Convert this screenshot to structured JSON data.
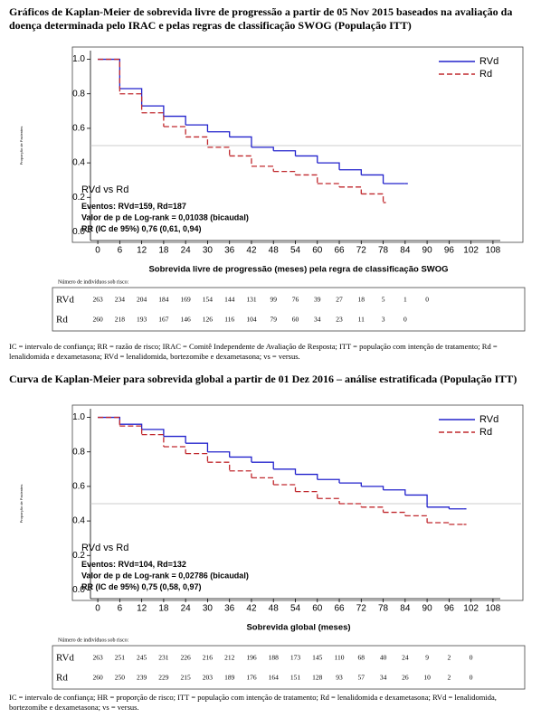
{
  "chart_data": [
    {
      "type": "step",
      "title": "Gráficos de Kaplan-Meier de sobrevida livre de progressão a partir de 05 Nov 2015 baseados na avaliação da doença determinada pelo IRAC e pelas regras de classificação SWOG (População ITT)",
      "x_label": "Sobrevida livre de progressão (meses) pela regra de classificação SWOG",
      "y_label": "Proporção de Pacientes",
      "annotations": [
        "RVd vs Rd",
        "Eventos: RVd=159, Rd=187",
        "Valor de p de Log-rank = 0,01038 (bicaudal)",
        "RR (IC de 95%) 0,76 (0,61, 0,94)"
      ],
      "x": [
        0,
        6,
        12,
        18,
        24,
        30,
        36,
        42,
        48,
        54,
        60,
        66,
        72,
        78,
        84
      ],
      "series": [
        {
          "name": "RVd",
          "color": "#2222cc",
          "dashed": false,
          "values": [
            1.0,
            0.83,
            0.73,
            0.67,
            0.62,
            0.58,
            0.55,
            0.49,
            0.47,
            0.44,
            0.4,
            0.36,
            0.33,
            0.28,
            0.28
          ]
        },
        {
          "name": "Rd",
          "color": "#c0282d",
          "dashed": true,
          "values": [
            1.0,
            0.8,
            0.69,
            0.61,
            0.55,
            0.49,
            0.44,
            0.38,
            0.35,
            0.33,
            0.28,
            0.26,
            0.22,
            0.17,
            null
          ]
        }
      ],
      "xlim": [
        -2,
        110
      ],
      "xticks": [
        0,
        6,
        12,
        18,
        24,
        30,
        36,
        42,
        48,
        54,
        60,
        66,
        72,
        78,
        84,
        90,
        96,
        102,
        108
      ],
      "ylim": [
        -0.05,
        1.05
      ],
      "yticks": [
        {
          "value": 0,
          "label": "0.0"
        },
        0.2,
        0.4,
        0.6,
        0.8,
        {
          "value": 1,
          "label": "1.0"
        }
      ],
      "refline": 0.5,
      "legend": "top-right",
      "risk_table": {
        "title": "Número de indivíduos sob risco:",
        "rows": [
          [
            263,
            234,
            204,
            184,
            169,
            154,
            144,
            131,
            99,
            76,
            39,
            27,
            18,
            5,
            1,
            0
          ],
          [
            260,
            218,
            193,
            167,
            146,
            126,
            116,
            104,
            79,
            60,
            34,
            23,
            11,
            3,
            0
          ]
        ]
      },
      "footnote": "IC = intervalo de confiança; RR = razão de risco; IRAC = Comitê Independente de Avaliação de Resposta; ITT = população com intenção de tratamento; Rd = lenalidomida e dexametasona; RVd = lenalidomida, bortezomibe e dexametasona; vs = versus."
    },
    {
      "type": "step",
      "title": "Curva de Kaplan-Meier para sobrevida global a partir de 01 Dez 2016 – análise estratificada (População ITT)",
      "x_label": "Sobrevida global (meses)",
      "y_label": "Proporção de Pacientes",
      "annotations": [
        "RVd vs Rd",
        "Eventos: RVd=104, Rd=132",
        "Valor de p de Log-rank = 0,02786 (bicaudal)",
        "RR (IC de 95%) 0,75 (0,58, 0,97)"
      ],
      "x": [
        0,
        6,
        12,
        18,
        24,
        30,
        36,
        42,
        48,
        54,
        60,
        66,
        72,
        78,
        84,
        90,
        96,
        100
      ],
      "series": [
        {
          "name": "RVd",
          "color": "#2222cc",
          "dashed": false,
          "values": [
            1.0,
            0.96,
            0.93,
            0.89,
            0.85,
            0.8,
            0.77,
            0.74,
            0.7,
            0.67,
            0.64,
            0.62,
            0.6,
            0.58,
            0.55,
            0.48,
            0.47,
            0.47
          ]
        },
        {
          "name": "Rd",
          "color": "#c0282d",
          "dashed": true,
          "values": [
            1.0,
            0.95,
            0.9,
            0.83,
            0.79,
            0.74,
            0.69,
            0.65,
            0.61,
            0.57,
            0.53,
            0.5,
            0.48,
            0.45,
            0.43,
            0.39,
            0.38,
            0.38
          ]
        }
      ],
      "xlim": [
        -2,
        110
      ],
      "xticks": [
        0,
        6,
        12,
        18,
        24,
        30,
        36,
        42,
        48,
        54,
        60,
        66,
        72,
        78,
        84,
        90,
        96,
        102,
        108
      ],
      "ylim": [
        -0.05,
        1.05
      ],
      "yticks": [
        {
          "value": 0,
          "label": "0.0"
        },
        0.2,
        0.4,
        0.6,
        0.8,
        {
          "value": 1,
          "label": "1.0"
        }
      ],
      "refline": 0.5,
      "legend": "top-right",
      "risk_table": {
        "title": "Número de indivíduos sob risco:",
        "rows": [
          [
            263,
            251,
            245,
            231,
            226,
            216,
            212,
            196,
            188,
            173,
            145,
            110,
            68,
            40,
            24,
            9,
            2,
            0
          ],
          [
            260,
            250,
            239,
            229,
            215,
            203,
            189,
            176,
            164,
            151,
            128,
            93,
            57,
            34,
            26,
            10,
            2,
            0
          ]
        ]
      },
      "footnote": "IC = intervalo de confiança; HR = proporção de risco; ITT = população com intenção de tratamento; Rd = lenalidomida e dexametasona; RVd = lenalidomida, bortezomibe e dexametasona; vs = versus."
    }
  ]
}
